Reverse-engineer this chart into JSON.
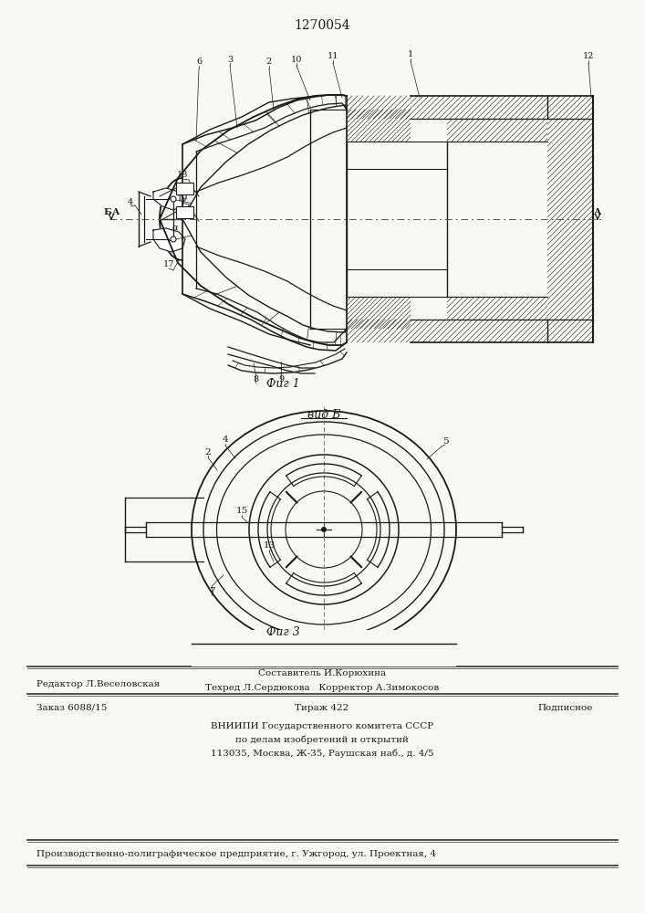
{
  "patent_number": "1270054",
  "fig1_caption": "Фиг 1",
  "fig3_caption": "Фиг 3",
  "view_label": "вид Б",
  "footer": {
    "line1_left": "Редактор Л.Веселовская",
    "line1_center": "Составитель И.Корюхина",
    "line2_center": "Техред Л.Сердюкова   Корректор А.Зимокосов",
    "line3_left": "Заказ 6088/15",
    "line3_center": "Тираж 422",
    "line3_right": "Подписное",
    "line4": "ВНИИПИ Государственного комитета СССР",
    "line5": "по делам изобретений и открытий",
    "line6": "113035, Москва, Ж-35, Раушская наб., д. 4/5",
    "line7": "Производственно-полиграфическое предприятие, г. Ужгород, ул. Проектная, 4"
  },
  "bg_color": "#f8f8f5",
  "line_color": "#1a1a1a"
}
